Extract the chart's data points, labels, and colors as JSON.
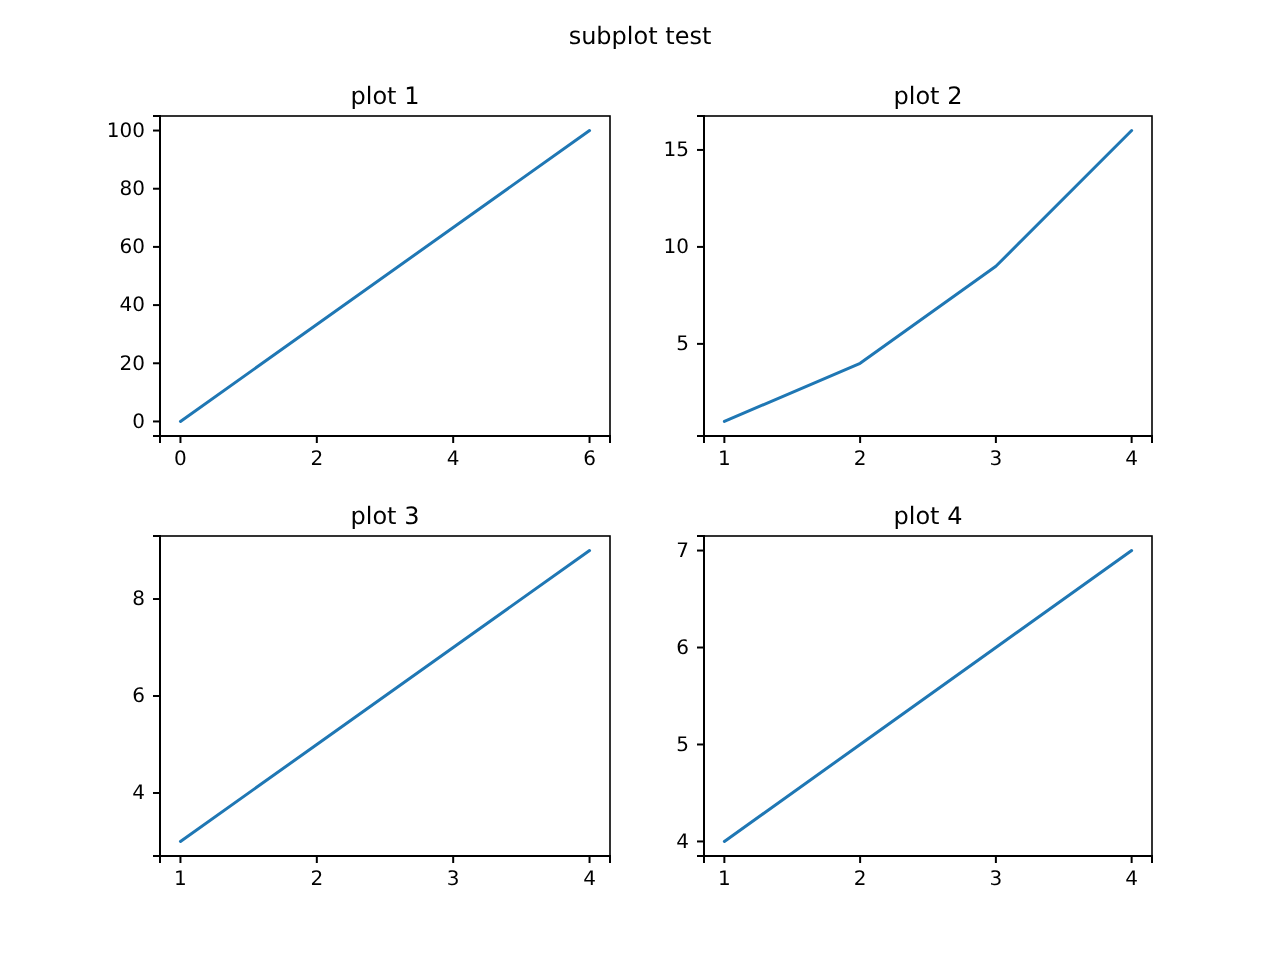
{
  "chart_data": [
    {
      "type": "line",
      "title": "plot 1",
      "annotations": [
        "subplot test"
      ],
      "x": [
        0,
        6
      ],
      "series": [
        {
          "color": "#1f77b4",
          "values": [
            0,
            100
          ]
        }
      ],
      "xlim": [
        -0.3,
        6.3
      ],
      "ylim": [
        -5,
        105
      ],
      "xticks": [
        0,
        2,
        4,
        6
      ],
      "yticks": [
        0,
        20,
        40,
        60,
        80,
        100
      ]
    },
    {
      "type": "line",
      "title": "plot 2",
      "x": [
        1,
        2,
        3,
        4
      ],
      "series": [
        {
          "color": "#1f77b4",
          "values": [
            1,
            4,
            9,
            16
          ]
        }
      ],
      "xlim": [
        0.85,
        4.15
      ],
      "ylim": [
        0.25,
        16.75
      ],
      "xticks": [
        1,
        2,
        3,
        4
      ],
      "yticks": [
        5,
        10,
        15
      ]
    },
    {
      "type": "line",
      "title": "plot 3",
      "x": [
        1,
        2,
        3,
        4
      ],
      "series": [
        {
          "color": "#1f77b4",
          "values": [
            3,
            5,
            7,
            9
          ]
        }
      ],
      "xlim": [
        0.85,
        4.15
      ],
      "ylim": [
        2.7,
        9.3
      ],
      "xticks": [
        1,
        2,
        3,
        4
      ],
      "yticks": [
        4,
        6,
        8
      ]
    },
    {
      "type": "line",
      "title": "plot 4",
      "x": [
        1,
        2,
        3,
        4
      ],
      "series": [
        {
          "color": "#1f77b4",
          "values": [
            4,
            5,
            6,
            7
          ]
        }
      ],
      "xlim": [
        0.85,
        4.15
      ],
      "ylim": [
        3.85,
        7.15
      ],
      "xticks": [
        1,
        2,
        3,
        4
      ],
      "yticks": [
        4,
        5,
        6,
        7
      ]
    }
  ]
}
